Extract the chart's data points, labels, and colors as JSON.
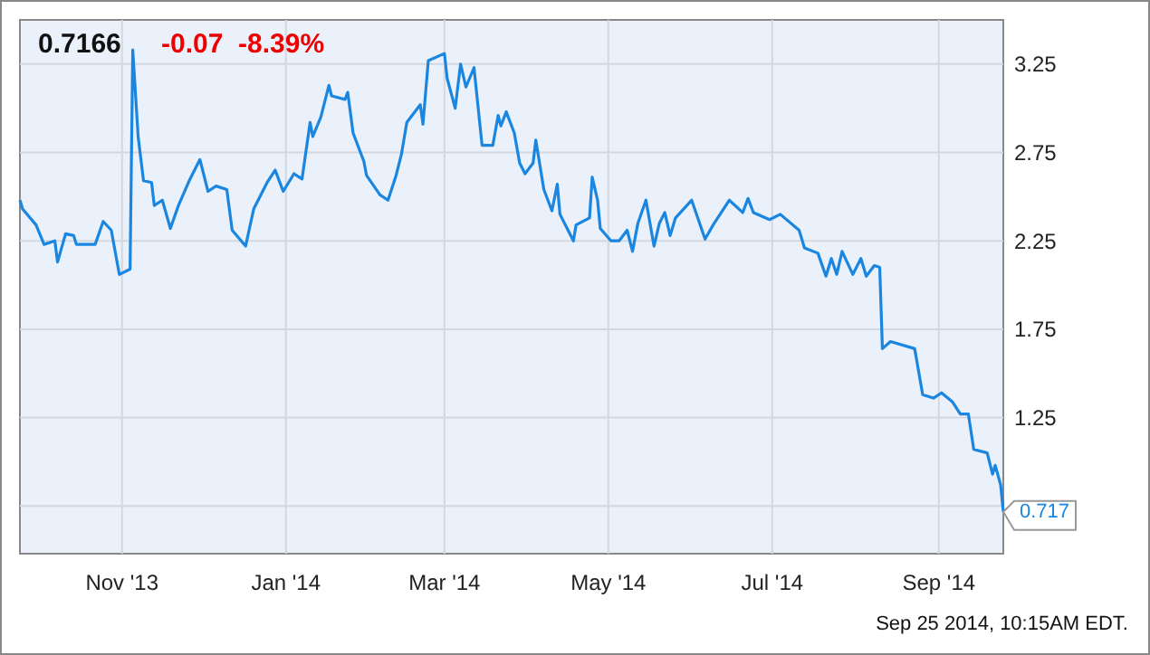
{
  "chart_data": {
    "type": "line",
    "title": "0.7166",
    "subtitle": "-0.07  -8.39%",
    "annotations": [
      {
        "text": "0.717",
        "x": "2014-09-25",
        "y": 0.717
      },
      "Sep 25 2014, 10:15AM EDT."
    ],
    "xlim": [
      "2013-09-24",
      "2014-09-25"
    ],
    "xticks": [
      {
        "value": "2013-11-01",
        "label": "Nov '13"
      },
      {
        "value": "2014-01-01",
        "label": "Jan '14"
      },
      {
        "value": "2014-03-01",
        "label": "Mar '14"
      },
      {
        "value": "2014-05-01",
        "label": "May '14"
      },
      {
        "value": "2014-07-01",
        "label": "Jul '14"
      },
      {
        "value": "2014-09-01",
        "label": "Sep '14"
      }
    ],
    "ylim": [
      0.48,
      3.5
    ],
    "yticks": [
      {
        "value": 0.75,
        "label": null
      },
      1.25,
      1.75,
      2.25,
      2.75,
      3.25
    ],
    "grid": true,
    "marker": "none",
    "line_style": "solid",
    "x": [
      "2013-09-24",
      "2013-09-25",
      "2013-09-30",
      "2013-10-03",
      "2013-10-07",
      "2013-10-08",
      "2013-10-11",
      "2013-10-14",
      "2013-10-15",
      "2013-10-22",
      "2013-10-25",
      "2013-10-28",
      "2013-10-31",
      "2013-11-04",
      "2013-11-05",
      "2013-11-07",
      "2013-11-09",
      "2013-11-12",
      "2013-11-13",
      "2013-11-16",
      "2013-11-19",
      "2013-11-22",
      "2013-11-26",
      "2013-11-30",
      "2013-12-03",
      "2013-12-06",
      "2013-12-10",
      "2013-12-12",
      "2013-12-17",
      "2013-12-20",
      "2013-12-25",
      "2013-12-28",
      "2013-12-31",
      "2014-01-04",
      "2014-01-07",
      "2014-01-10",
      "2014-01-11",
      "2014-01-14",
      "2014-01-17",
      "2014-01-18",
      "2014-01-23",
      "2014-01-24",
      "2014-01-26",
      "2014-01-30",
      "2014-01-31",
      "2014-02-05",
      "2014-02-08",
      "2014-02-11",
      "2014-02-13",
      "2014-02-15",
      "2014-02-20",
      "2014-02-21",
      "2014-02-23",
      "2014-03-01",
      "2014-03-02",
      "2014-03-05",
      "2014-03-07",
      "2014-03-09",
      "2014-03-12",
      "2014-03-15",
      "2014-03-19",
      "2014-03-21",
      "2014-03-22",
      "2014-03-24",
      "2014-03-27",
      "2014-03-29",
      "2014-03-31",
      "2014-04-03",
      "2014-04-04",
      "2014-04-07",
      "2014-04-10",
      "2014-04-12",
      "2014-04-13",
      "2014-04-18",
      "2014-04-19",
      "2014-04-24",
      "2014-04-25",
      "2014-04-27",
      "2014-04-28",
      "2014-05-02",
      "2014-05-05",
      "2014-05-08",
      "2014-05-10",
      "2014-05-12",
      "2014-05-15",
      "2014-05-18",
      "2014-05-20",
      "2014-05-22",
      "2014-05-24",
      "2014-05-26",
      "2014-06-01",
      "2014-06-06",
      "2014-06-09",
      "2014-06-15",
      "2014-06-20",
      "2014-06-22",
      "2014-06-24",
      "2014-06-30",
      "2014-07-04",
      "2014-07-11",
      "2014-07-13",
      "2014-07-18",
      "2014-07-21",
      "2014-07-23",
      "2014-07-25",
      "2014-07-27",
      "2014-07-31",
      "2014-08-03",
      "2014-08-05",
      "2014-08-08",
      "2014-08-10",
      "2014-08-11",
      "2014-08-14",
      "2014-08-23",
      "2014-08-26",
      "2014-08-30",
      "2014-09-02",
      "2014-09-06",
      "2014-09-09",
      "2014-09-12",
      "2014-09-14",
      "2014-09-19",
      "2014-09-21",
      "2014-09-22",
      "2014-09-24",
      "2014-09-25"
    ],
    "series": [
      {
        "color": "#1a86e0",
        "values": [
          2.48,
          2.43,
          2.34,
          2.23,
          2.25,
          2.13,
          2.29,
          2.28,
          2.23,
          2.23,
          2.36,
          2.31,
          2.06,
          2.09,
          3.33,
          2.84,
          2.59,
          2.58,
          2.45,
          2.48,
          2.32,
          2.45,
          2.59,
          2.71,
          2.53,
          2.56,
          2.54,
          2.31,
          2.22,
          2.43,
          2.58,
          2.65,
          2.53,
          2.63,
          2.6,
          2.92,
          2.84,
          2.95,
          3.13,
          3.07,
          3.05,
          3.09,
          2.86,
          2.7,
          2.62,
          2.51,
          2.48,
          2.62,
          2.74,
          2.92,
          3.02,
          2.91,
          3.27,
          3.31,
          3.17,
          3.0,
          3.25,
          3.12,
          3.23,
          2.79,
          2.79,
          2.96,
          2.9,
          2.98,
          2.86,
          2.69,
          2.63,
          2.69,
          2.82,
          2.54,
          2.42,
          2.57,
          2.4,
          2.25,
          2.34,
          2.38,
          2.61,
          2.48,
          2.32,
          2.25,
          2.25,
          2.31,
          2.19,
          2.35,
          2.48,
          2.22,
          2.35,
          2.41,
          2.28,
          2.38,
          2.48,
          2.26,
          2.34,
          2.48,
          2.41,
          2.49,
          2.41,
          2.37,
          2.4,
          2.31,
          2.21,
          2.18,
          2.05,
          2.15,
          2.06,
          2.19,
          2.06,
          2.15,
          2.05,
          2.11,
          2.1,
          1.64,
          1.68,
          1.64,
          1.38,
          1.36,
          1.39,
          1.34,
          1.27,
          1.27,
          1.07,
          1.05,
          0.93,
          0.98,
          0.87,
          0.717
        ]
      }
    ]
  }
}
